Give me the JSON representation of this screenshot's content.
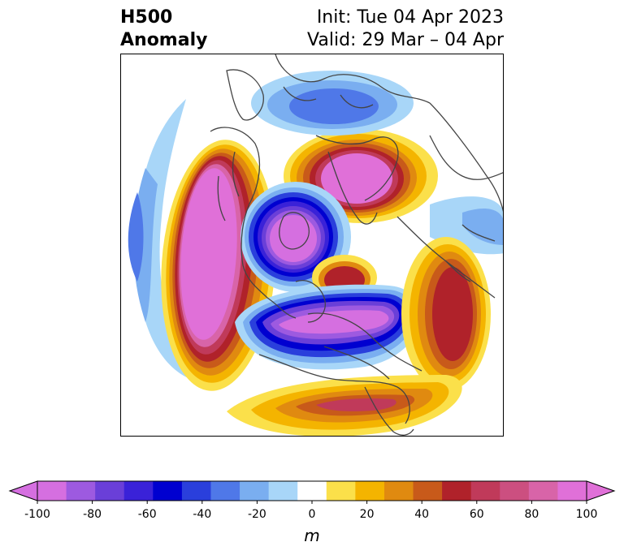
{
  "title": {
    "left_line1": "H500",
    "left_line2": "Anomaly",
    "right_line1": "Init: Tue 04 Apr 2023",
    "right_line2": "Valid: 29 Mar – 04 Apr"
  },
  "colorbar": {
    "unit": "m",
    "levels": [
      -100,
      -90,
      -80,
      -70,
      -60,
      -50,
      -40,
      -30,
      -20,
      -10,
      10,
      20,
      30,
      40,
      50,
      60,
      70,
      80,
      90,
      100
    ],
    "colors": [
      "#d56fe0",
      "#9d5ae0",
      "#6a3fd8",
      "#3a22d8",
      "#0000d0",
      "#2a3fdc",
      "#4f78e8",
      "#7aaef0",
      "#a8d6f8",
      "#ffffff",
      "#fbe04a",
      "#f4b400",
      "#e08a10",
      "#c85a1a",
      "#b0222a",
      "#c03a5a",
      "#cc4f80",
      "#d864a8",
      "#e070d8"
    ],
    "tick_labels": [
      "-100",
      "-80",
      "-60",
      "-40",
      "-20",
      "0",
      "20",
      "40",
      "60",
      "80",
      "100"
    ]
  },
  "colors": {
    "coastline": "#444444",
    "neg_extreme": "#d56fe0",
    "pos_extreme": "#e070d8"
  }
}
